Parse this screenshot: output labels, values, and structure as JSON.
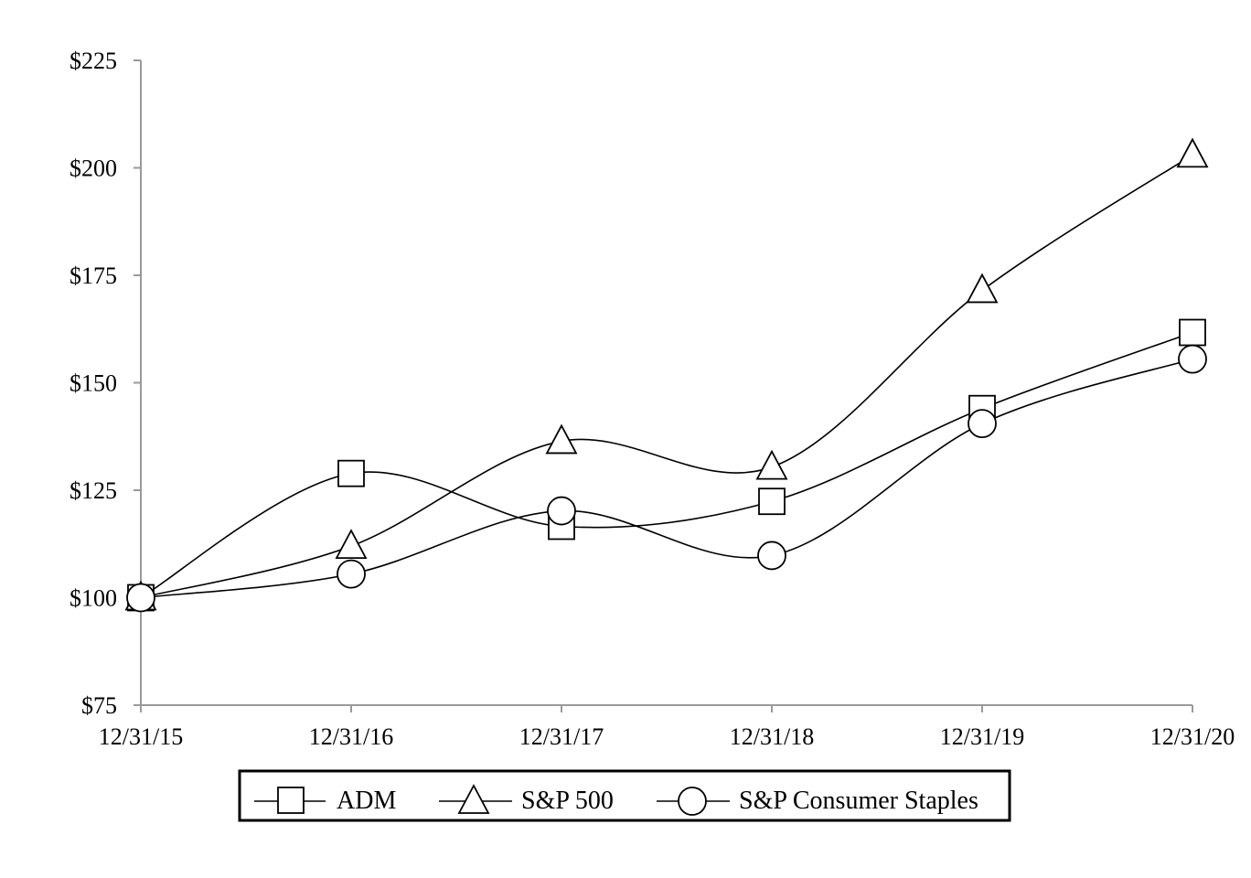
{
  "chart_data": {
    "type": "line",
    "title": "",
    "xlabel": "",
    "ylabel": "",
    "categories": [
      "12/31/15",
      "12/31/16",
      "12/31/17",
      "12/31/18",
      "12/31/19",
      "12/31/20"
    ],
    "y_ticks": [
      "$75",
      "$100",
      "$125",
      "$150",
      "$175",
      "$200",
      "$225"
    ],
    "y_tick_values": [
      75,
      100,
      125,
      150,
      175,
      200,
      225
    ],
    "ylim": [
      75,
      225
    ],
    "grid": false,
    "legend_position": "bottom",
    "smooth": true,
    "series": [
      {
        "name": "ADM",
        "marker": "square",
        "values": [
          100,
          128.9,
          116.6,
          122.4,
          144.0,
          161.7
        ]
      },
      {
        "name": "S&P 500",
        "marker": "triangle",
        "values": [
          100,
          112.0,
          136.4,
          130.4,
          171.5,
          203.0
        ]
      },
      {
        "name": "S&P Consumer Staples",
        "marker": "circle",
        "values": [
          100,
          105.5,
          120.2,
          109.8,
          140.5,
          155.5
        ]
      }
    ]
  }
}
